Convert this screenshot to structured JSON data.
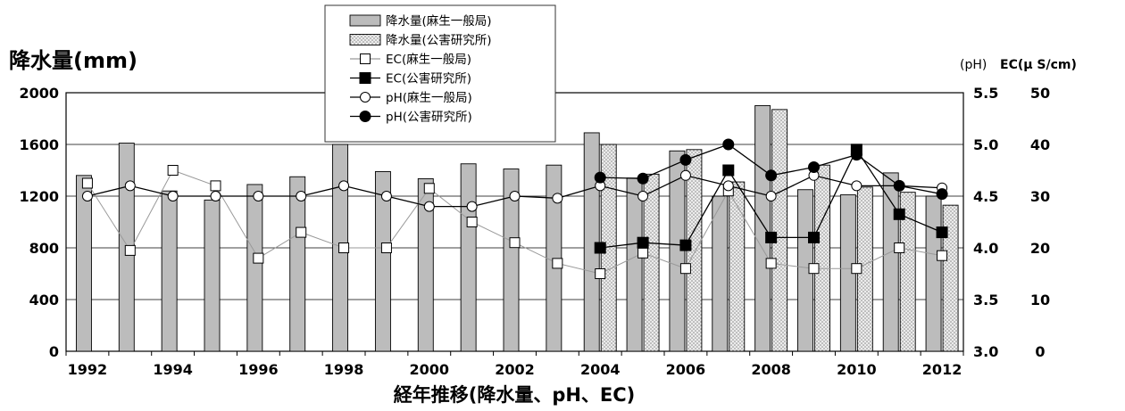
{
  "chart_data": {
    "type": "bar",
    "title": "",
    "xlabel": "経年推移(降水量、pH、EC)",
    "ylabel_left": "降水量(mm)",
    "ylabel_right_ph": "(pH)",
    "ylabel_right_ec": "EC(μ S/cm)",
    "ylim_left": [
      0,
      2000
    ],
    "ylim_ph": [
      3.0,
      5.5
    ],
    "ylim_ec": [
      0,
      50
    ],
    "yticks_left": [
      "0",
      "400",
      "800",
      "1200",
      "1600",
      "2000"
    ],
    "yticks_ph": [
      "3.0",
      "3.5",
      "4.0",
      "4.5",
      "5.0",
      "5.5"
    ],
    "yticks_ec": [
      "0",
      "10",
      "20",
      "30",
      "40",
      "50"
    ],
    "x": [
      1992,
      1993,
      1994,
      1995,
      1996,
      1997,
      1998,
      1999,
      2000,
      2001,
      2002,
      2003,
      2004,
      2005,
      2006,
      2007,
      2008,
      2009,
      2010,
      2011,
      2012
    ],
    "xtick_labels": [
      "1992",
      "1994",
      "1996",
      "1998",
      "2000",
      "2002",
      "2004",
      "2006",
      "2008",
      "2010",
      "2012"
    ],
    "grid": true,
    "legend_position": "top-center",
    "series": [
      {
        "name": "降水量(麻生一般局)",
        "kind": "bar",
        "axis": "left",
        "color": "#bcbcbc",
        "values": [
          1360,
          1610,
          1240,
          1170,
          1290,
          1350,
          1600,
          1390,
          1335,
          1450,
          1410,
          1440,
          1690,
          1340,
          1550,
          1200,
          1900,
          1250,
          1210,
          1380,
          1200
        ]
      },
      {
        "name": "降水量(公害研究所)",
        "kind": "bar",
        "axis": "left",
        "color": "#e6e6e6",
        "values": [
          null,
          null,
          null,
          null,
          null,
          null,
          null,
          null,
          null,
          null,
          null,
          null,
          1600,
          1370,
          1560,
          1310,
          1870,
          1440,
          1270,
          1230,
          1130
        ]
      },
      {
        "name": "EC(麻生一般局)",
        "kind": "line",
        "axis": "ec",
        "marker": "open-square",
        "color": "#999999",
        "values": [
          32.5,
          19.5,
          35,
          32,
          18,
          23,
          20,
          20,
          31.5,
          25,
          21,
          17,
          15,
          19,
          16,
          31,
          17,
          16,
          16,
          20,
          18.5
        ]
      },
      {
        "name": "EC(公害研究所)",
        "kind": "line",
        "axis": "ec",
        "marker": "filled-square",
        "color": "#000000",
        "values": [
          null,
          null,
          null,
          null,
          null,
          null,
          null,
          null,
          null,
          null,
          null,
          null,
          20,
          21,
          20.5,
          35,
          22,
          22,
          39,
          26.5,
          23
        ]
      },
      {
        "name": "pH(麻生一般局)",
        "kind": "line",
        "axis": "ph",
        "marker": "open-circle",
        "color": "#000000",
        "values": [
          4.5,
          4.6,
          4.5,
          4.5,
          4.5,
          4.5,
          4.6,
          4.5,
          4.4,
          4.4,
          4.5,
          4.48,
          4.6,
          4.5,
          4.7,
          4.6,
          4.5,
          4.7,
          4.6,
          4.6,
          4.58
        ]
      },
      {
        "name": "pH(公害研究所)",
        "kind": "line",
        "axis": "ph",
        "marker": "filled-circle",
        "color": "#000000",
        "values": [
          null,
          null,
          null,
          null,
          null,
          null,
          null,
          null,
          null,
          null,
          null,
          null,
          4.68,
          4.67,
          4.85,
          5.0,
          4.7,
          4.78,
          4.9,
          4.6,
          4.52
        ]
      }
    ]
  }
}
